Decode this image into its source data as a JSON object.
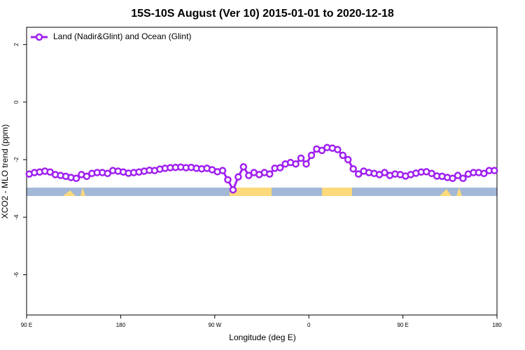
{
  "chart_data": {
    "type": "line",
    "title": "15S-10S August (Ver 10)   2015-01-01 to 2020-12-18",
    "x_label": "Longitude (deg E)",
    "y_label": "XCO2 - MLO trend (ppm)",
    "xlim": [
      90,
      540
    ],
    "ylim": [
      -7.4,
      2.6
    ],
    "xticks": [
      {
        "value": 90,
        "label": "90 E"
      },
      {
        "value": 180,
        "label": "180"
      },
      {
        "value": 270,
        "label": "90 W"
      },
      {
        "value": 360,
        "label": "0"
      },
      {
        "value": 450,
        "label": "90 E"
      },
      {
        "value": 540,
        "label": "180"
      }
    ],
    "yticks": [
      2,
      0,
      -2,
      -4,
      -6
    ],
    "legend": "top-left",
    "x": [
      92.5,
      97.5,
      102.5,
      107.5,
      112.5,
      117.5,
      122.5,
      127.5,
      132.5,
      137.5,
      142.5,
      147.5,
      152.5,
      157.5,
      162.5,
      167.5,
      172.5,
      177.5,
      182.5,
      187.5,
      192.5,
      197.5,
      202.5,
      207.5,
      212.5,
      217.5,
      222.5,
      227.5,
      232.5,
      237.5,
      242.5,
      247.5,
      252.5,
      257.5,
      262.5,
      267.5,
      272.5,
      277.5,
      282.5,
      287.5,
      292.5,
      297.5,
      302.5,
      307.5,
      312.5,
      317.5,
      322.5,
      327.5,
      332.5,
      337.5,
      342.5,
      347.5,
      352.5,
      357.5,
      362.5,
      367.5,
      372.5,
      377.5,
      382.5,
      387.5,
      392.5,
      397.5,
      402.5,
      407.5,
      412.5,
      417.5,
      422.5,
      427.5,
      432.5,
      437.5,
      442.5,
      447.5,
      452.5,
      457.5,
      462.5,
      467.5,
      472.5,
      477.5,
      482.5,
      487.5,
      492.5,
      497.5,
      502.5,
      507.5,
      512.5,
      517.5,
      522.5,
      527.5,
      532.5,
      537.5
    ],
    "series": [
      {
        "name": "Land (Nadir&Glint) and Ocean (Glint)",
        "color": "#a020f0",
        "values": [
          -2.5,
          -2.45,
          -2.43,
          -2.4,
          -2.43,
          -2.52,
          -2.55,
          -2.58,
          -2.62,
          -2.65,
          -2.52,
          -2.58,
          -2.48,
          -2.45,
          -2.45,
          -2.48,
          -2.38,
          -2.4,
          -2.43,
          -2.47,
          -2.45,
          -2.43,
          -2.4,
          -2.37,
          -2.38,
          -2.33,
          -2.3,
          -2.28,
          -2.27,
          -2.26,
          -2.28,
          -2.27,
          -2.3,
          -2.32,
          -2.3,
          -2.35,
          -2.42,
          -2.38,
          -2.7,
          -3.05,
          -2.6,
          -2.25,
          -2.55,
          -2.45,
          -2.52,
          -2.45,
          -2.5,
          -2.3,
          -2.28,
          -2.15,
          -2.1,
          -2.15,
          -1.95,
          -2.15,
          -1.85,
          -1.63,
          -1.68,
          -1.58,
          -1.6,
          -1.65,
          -1.85,
          -2.0,
          -2.32,
          -2.5,
          -2.4,
          -2.45,
          -2.48,
          -2.52,
          -2.45,
          -2.55,
          -2.5,
          -2.52,
          -2.57,
          -2.52,
          -2.47,
          -2.43,
          -2.42,
          -2.48,
          -2.57,
          -2.58,
          -2.62,
          -2.65,
          -2.55,
          -2.65,
          -2.5,
          -2.45,
          -2.45,
          -2.48,
          -2.38,
          -2.38
        ]
      }
    ]
  }
}
